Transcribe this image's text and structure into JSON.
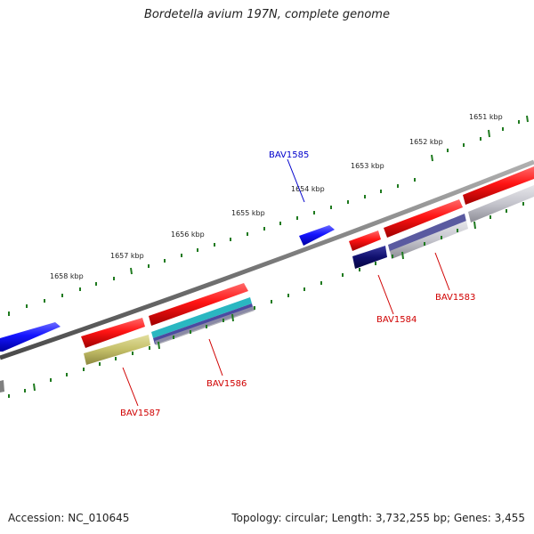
{
  "header": {
    "title": "Bordetella avium 197N, complete genome"
  },
  "footer": {
    "accession": "Accession: NC_010645",
    "summary": "Topology: circular; Length: 3,732,255 bp; Genes: 3,455"
  },
  "colors": {
    "backbone": "#808080",
    "tick": "#1f7a1f",
    "forward_gene": "#ff1a1a",
    "highlight_gene": "#1a1aff",
    "reverse_rna": "#1a237e",
    "label_red": "#d00000",
    "label_blue": "#0000cc"
  },
  "scale_labels": [
    "1651 kbp",
    "1652 kbp",
    "1653 kbp",
    "1654 kbp",
    "1655 kbp",
    "1656 kbp",
    "1657 kbp",
    "1658 kbp"
  ],
  "gene_labels": [
    "BAV1583",
    "BAV1584",
    "BAV1585",
    "BAV1586",
    "BAV1587"
  ]
}
